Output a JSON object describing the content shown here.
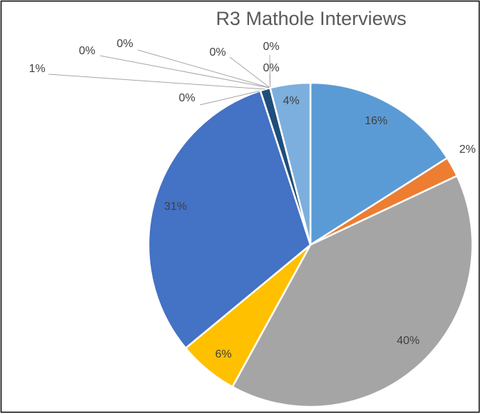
{
  "chart_data": {
    "type": "pie",
    "title": "R3 Mathole Interviews",
    "values": [
      16,
      2,
      40,
      6,
      31,
      0,
      1,
      0,
      0,
      0,
      0,
      0,
      4
    ],
    "value_labels": [
      "16%",
      "2%",
      "40%",
      "6%",
      "31%",
      "0%",
      "1%",
      "0%",
      "0%",
      "0%",
      "0%",
      "0%",
      "4%"
    ],
    "colors": [
      "#5b9bd5",
      "#ed7d31",
      "#a5a5a5",
      "#ffc000",
      "#4472c4",
      "#70ad47",
      "#1f4e79",
      "#9e480e",
      "#636363",
      "#997300",
      "#264478",
      "#43682b",
      "#7cafdd"
    ]
  }
}
